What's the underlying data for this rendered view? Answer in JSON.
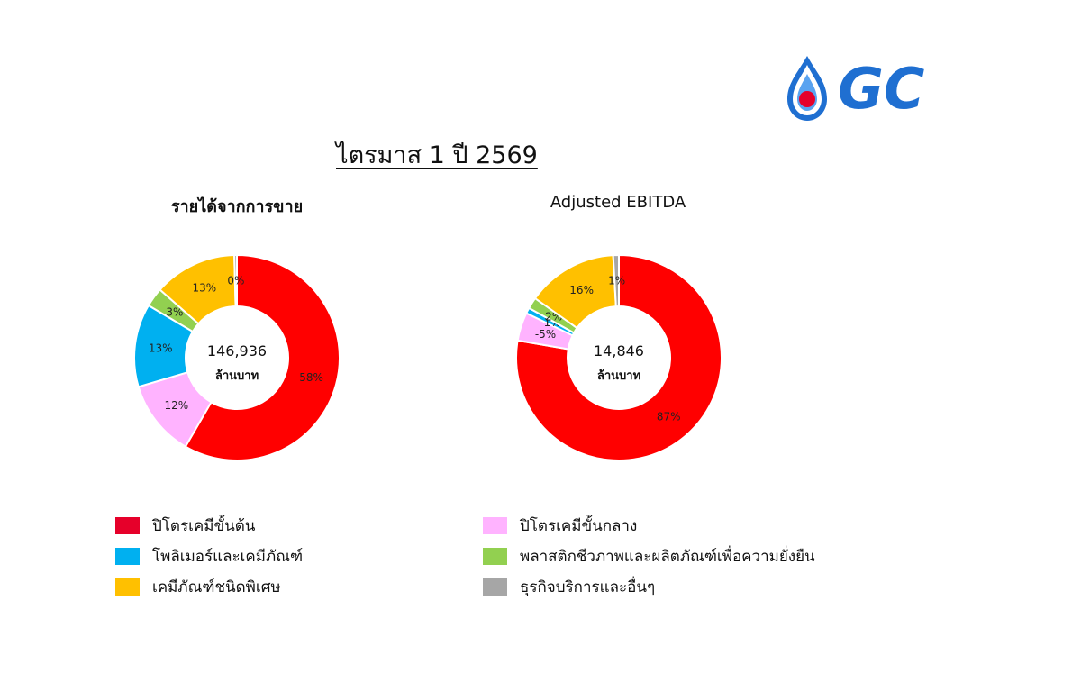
{
  "logo_text": "GC",
  "main_title": "ไตรมาส 1 ปี 2569",
  "chart_data": [
    {
      "type": "pie",
      "title": "รายได้จากการขาย",
      "center_value": "146,936",
      "center_unit": "ล้านบาท",
      "slices": [
        {
          "category": "ปิโตรเคมีขั้นต้น",
          "value": 58,
          "label": "58%"
        },
        {
          "category": "ปิโตรเคมีขั้นกลาง",
          "value": 12,
          "label": "12%"
        },
        {
          "category": "โพลิเมอร์และเคมีภัณฑ์",
          "value": 13,
          "label": "13%"
        },
        {
          "category": "พลาสติกชีวภาพและผลิตภัณฑ์เพื่อความยั่งยืน",
          "value": 3,
          "label": "3%"
        },
        {
          "category": "เคมีภัณฑ์ชนิดพิเศษ",
          "value": 13,
          "label": "13%"
        },
        {
          "category": "ธุรกิจบริการและอื่นๆ",
          "value": 0.4,
          "label": "0%"
        }
      ]
    },
    {
      "type": "pie",
      "title": "Adjusted EBITDA",
      "center_value": "14,846",
      "center_unit": "ล้านบาท",
      "slices": [
        {
          "category": "ปิโตรเคมีขั้นต้น",
          "value": 87,
          "label": "87%"
        },
        {
          "category": "ปิโตรเคมีขั้นกลาง",
          "value": -5,
          "label": "-5%"
        },
        {
          "category": "โพลิเมอร์และเคมีภัณฑ์",
          "value": -1,
          "label": "-1%"
        },
        {
          "category": "พลาสติกชีวภาพและผลิตภัณฑ์เพื่อความยั่งยืน",
          "value": 2,
          "label": "2%"
        },
        {
          "category": "เคมีภัณฑ์ชนิดพิเศษ",
          "value": 16,
          "label": "16%"
        },
        {
          "category": "ธุรกิจบริการและอื่นๆ",
          "value": 1,
          "label": "1%"
        }
      ]
    }
  ],
  "legend": [
    {
      "label": "ปิโตรเคมีขั้นต้น",
      "color": "#ff0000"
    },
    {
      "label": "ปิโตรเคมีขั้นกลาง",
      "color": "#ffb3ff"
    },
    {
      "label": "โพลิเมอร์และเคมีภัณฑ์",
      "color": "#00b0f0"
    },
    {
      "label": "พลาสติกชีวภาพและผลิตภัณฑ์เพื่อความยั่งยืน",
      "color": "#92d050"
    },
    {
      "label": "เคมีภัณฑ์ชนิดพิเศษ",
      "color": "#ffc000"
    },
    {
      "label": "ธุรกิจบริการและอื่นๆ",
      "color": "#a6a6a6"
    }
  ]
}
